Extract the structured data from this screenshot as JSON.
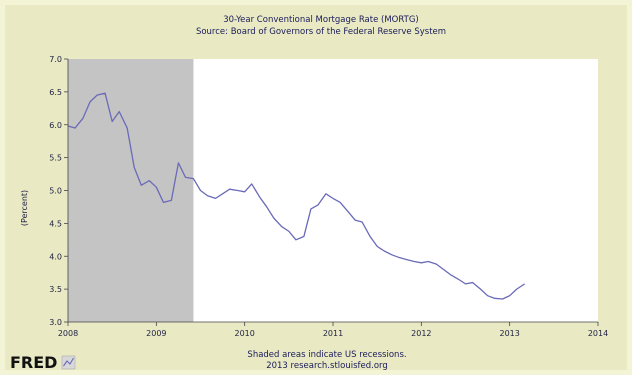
{
  "chart_data": {
    "type": "line",
    "title": "30-Year Conventional Mortgage Rate (MORTG)",
    "subtitle": "Source: Board of Governors of the Federal Reserve System",
    "xlabel": "",
    "ylabel": "(Percent)",
    "xlim": [
      2008,
      2014
    ],
    "ylim": [
      3.0,
      7.0
    ],
    "x_ticks": [
      "2008",
      "2009",
      "2010",
      "2011",
      "2012",
      "2013",
      "2014"
    ],
    "y_ticks": [
      "3.0",
      "3.5",
      "4.0",
      "4.5",
      "5.0",
      "5.5",
      "6.0",
      "6.5",
      "7.0"
    ],
    "grid": false,
    "recession": {
      "start": 2008.0,
      "end": 2009.42,
      "color": "#c4c4c4"
    },
    "line_color": "#6a6ab8",
    "series": [
      {
        "x": [
          2008.0,
          2008.08,
          2008.17,
          2008.25,
          2008.33,
          2008.42,
          2008.5,
          2008.58,
          2008.67,
          2008.75,
          2008.83,
          2008.92,
          2009.0,
          2009.08,
          2009.17,
          2009.25,
          2009.33,
          2009.42,
          2009.5,
          2009.58,
          2009.67,
          2009.75,
          2009.83,
          2009.92,
          2010.0,
          2010.08,
          2010.17,
          2010.25,
          2010.33,
          2010.42,
          2010.5,
          2010.58,
          2010.67,
          2010.75,
          2010.83,
          2010.92,
          2011.0,
          2011.08,
          2011.17,
          2011.25,
          2011.33,
          2011.42,
          2011.5,
          2011.58,
          2011.67,
          2011.75,
          2011.83,
          2011.92,
          2012.0,
          2012.08,
          2012.17,
          2012.25,
          2012.33,
          2012.42,
          2012.5,
          2012.58,
          2012.67,
          2012.75,
          2012.83,
          2012.92,
          2013.0,
          2013.08,
          2013.17
        ],
        "values": [
          5.98,
          5.95,
          6.1,
          6.35,
          6.45,
          6.48,
          6.05,
          6.2,
          5.95,
          5.35,
          5.08,
          5.15,
          5.05,
          4.82,
          4.85,
          5.42,
          5.2,
          5.18,
          5.0,
          4.92,
          4.88,
          4.95,
          5.02,
          5.0,
          4.98,
          5.1,
          4.9,
          4.75,
          4.58,
          4.45,
          4.38,
          4.25,
          4.3,
          4.72,
          4.78,
          4.95,
          4.88,
          4.82,
          4.68,
          4.55,
          4.52,
          4.3,
          4.15,
          4.08,
          4.02,
          3.98,
          3.95,
          3.92,
          3.9,
          3.92,
          3.88,
          3.8,
          3.72,
          3.65,
          3.58,
          3.6,
          3.5,
          3.4,
          3.36,
          3.35,
          3.4,
          3.5,
          3.58
        ]
      }
    ],
    "footer_note": "Shaded areas indicate US recessions.",
    "footer_source": "2013 research.stlouisfed.org"
  },
  "brand": {
    "logo_text": "FRED",
    "logo_icon": "chart-line-icon"
  }
}
